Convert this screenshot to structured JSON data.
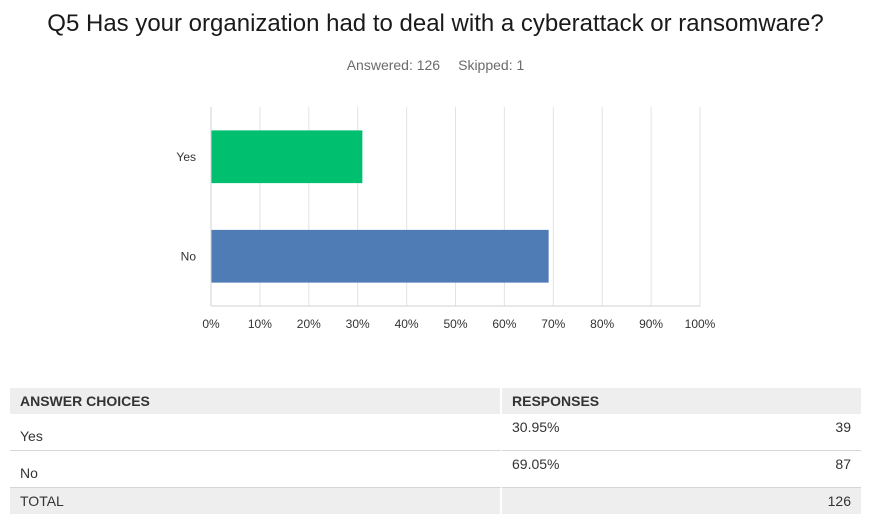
{
  "survey": {
    "question": "Q5 Has your organization had to deal with a cyberattack or ransomware?",
    "answered_label": "Answered: 126",
    "skipped_label": "Skipped: 1"
  },
  "chart_data": {
    "type": "bar",
    "orientation": "horizontal",
    "categories": [
      "Yes",
      "No"
    ],
    "values": [
      30.95,
      69.05
    ],
    "unit": "%",
    "xlim": [
      0,
      100
    ],
    "x_ticks": [
      "0%",
      "10%",
      "20%",
      "30%",
      "40%",
      "50%",
      "60%",
      "70%",
      "80%",
      "90%",
      "100%"
    ],
    "grid": true,
    "legend": "none",
    "colors": [
      "#00bf6f",
      "#507cb6"
    ],
    "title": "",
    "xlabel": "",
    "ylabel": ""
  },
  "table": {
    "headers": {
      "choice": "ANSWER CHOICES",
      "responses": "RESPONSES"
    },
    "rows": [
      {
        "choice": "Yes",
        "percent": "30.95%",
        "count": "39"
      },
      {
        "choice": "No",
        "percent": "69.05%",
        "count": "87"
      }
    ],
    "total": {
      "label": "TOTAL",
      "count": "126"
    }
  }
}
